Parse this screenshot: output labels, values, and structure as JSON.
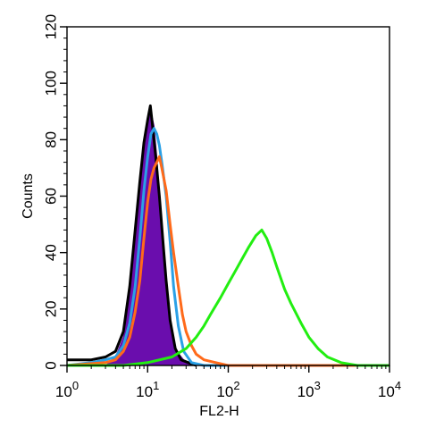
{
  "chart_data": {
    "type": "line",
    "title": "",
    "xlabel": "FL2-H",
    "ylabel": "Counts",
    "x_scale": "log",
    "xlim": [
      1,
      10000
    ],
    "ylim": [
      0,
      120
    ],
    "grid": false,
    "legend": "none",
    "x_ticks": [
      {
        "value": 1,
        "base": "10",
        "exp": "0"
      },
      {
        "value": 10,
        "base": "10",
        "exp": "1"
      },
      {
        "value": 100,
        "base": "10",
        "exp": "2"
      },
      {
        "value": 1000,
        "base": "10",
        "exp": "3"
      },
      {
        "value": 10000,
        "base": "10",
        "exp": "4"
      }
    ],
    "y_ticks": [
      "0",
      "20",
      "40",
      "60",
      "80",
      "100",
      "120"
    ],
    "series": [
      {
        "color": "#6a0dad",
        "filled": true,
        "points": [
          [
            3,
            0
          ],
          [
            4,
            3
          ],
          [
            5,
            10
          ],
          [
            6,
            25
          ],
          [
            7,
            45
          ],
          [
            8,
            62
          ],
          [
            9,
            78
          ],
          [
            10,
            86
          ],
          [
            11,
            90
          ],
          [
            12,
            85
          ],
          [
            13,
            74
          ],
          [
            14,
            60
          ],
          [
            15,
            46
          ],
          [
            16,
            32
          ],
          [
            18,
            20
          ],
          [
            20,
            11
          ],
          [
            23,
            5
          ],
          [
            28,
            2
          ],
          [
            35,
            0
          ]
        ]
      },
      {
        "color": "#000000",
        "filled": false,
        "points": [
          [
            1,
            2
          ],
          [
            2,
            2
          ],
          [
            3,
            3
          ],
          [
            4,
            5
          ],
          [
            5,
            12
          ],
          [
            6,
            28
          ],
          [
            7,
            48
          ],
          [
            8,
            65
          ],
          [
            9,
            79
          ],
          [
            10,
            87
          ],
          [
            10.8,
            92
          ],
          [
            11.5,
            85
          ],
          [
            12.5,
            75
          ],
          [
            14,
            60
          ],
          [
            15.5,
            44
          ],
          [
            17,
            30
          ],
          [
            19,
            16
          ],
          [
            22,
            6
          ],
          [
            26,
            2
          ],
          [
            32,
            1
          ],
          [
            40,
            0
          ]
        ]
      },
      {
        "color": "#2aa0e6",
        "filled": false,
        "points": [
          [
            1,
            0
          ],
          [
            2,
            1
          ],
          [
            3,
            2
          ],
          [
            4,
            3
          ],
          [
            5,
            7
          ],
          [
            6,
            15
          ],
          [
            7,
            28
          ],
          [
            8,
            45
          ],
          [
            9,
            62
          ],
          [
            10,
            74
          ],
          [
            11,
            82
          ],
          [
            12,
            84
          ],
          [
            13,
            82
          ],
          [
            14,
            78
          ],
          [
            15,
            72
          ],
          [
            17,
            60
          ],
          [
            19,
            44
          ],
          [
            21,
            28
          ],
          [
            24,
            14
          ],
          [
            28,
            5
          ],
          [
            35,
            1
          ],
          [
            50,
            0
          ],
          [
            100,
            0
          ],
          [
            1000,
            0
          ],
          [
            10000,
            0
          ]
        ]
      },
      {
        "color": "#ff6a1a",
        "filled": false,
        "points": [
          [
            1,
            0
          ],
          [
            3,
            1
          ],
          [
            4,
            2
          ],
          [
            5,
            5
          ],
          [
            6,
            10
          ],
          [
            7,
            19
          ],
          [
            8,
            30
          ],
          [
            9,
            45
          ],
          [
            10,
            58
          ],
          [
            11,
            66
          ],
          [
            12,
            70
          ],
          [
            13,
            72
          ],
          [
            14,
            74
          ],
          [
            15,
            70
          ],
          [
            17,
            62
          ],
          [
            19,
            50
          ],
          [
            21,
            40
          ],
          [
            24,
            28
          ],
          [
            27,
            18
          ],
          [
            30,
            12
          ],
          [
            35,
            7
          ],
          [
            40,
            4
          ],
          [
            50,
            2
          ],
          [
            70,
            1
          ],
          [
            100,
            0
          ],
          [
            1000,
            0
          ],
          [
            10000,
            0
          ]
        ]
      },
      {
        "color": "#22ee11",
        "filled": false,
        "points": [
          [
            1,
            0
          ],
          [
            5,
            0
          ],
          [
            10,
            1
          ],
          [
            20,
            3
          ],
          [
            30,
            6
          ],
          [
            40,
            10
          ],
          [
            50,
            14
          ],
          [
            60,
            18
          ],
          [
            80,
            24
          ],
          [
            100,
            29
          ],
          [
            120,
            33
          ],
          [
            150,
            38
          ],
          [
            180,
            42
          ],
          [
            220,
            46
          ],
          [
            260,
            48
          ],
          [
            300,
            45
          ],
          [
            350,
            40
          ],
          [
            400,
            35
          ],
          [
            500,
            27
          ],
          [
            600,
            22
          ],
          [
            800,
            15
          ],
          [
            1000,
            10
          ],
          [
            1300,
            6
          ],
          [
            1700,
            3
          ],
          [
            2500,
            1
          ],
          [
            4000,
            0
          ],
          [
            10000,
            0
          ]
        ]
      }
    ]
  }
}
